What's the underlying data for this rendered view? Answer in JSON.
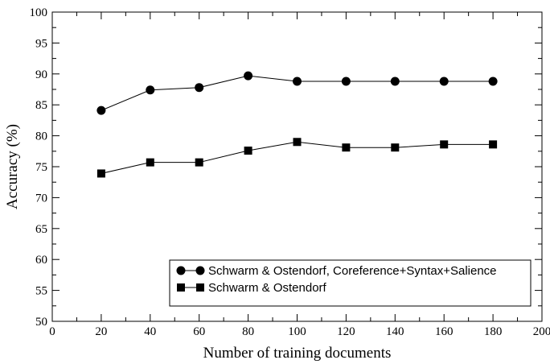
{
  "chart_data": {
    "type": "line",
    "title": "",
    "xlabel": "Number of training documents",
    "ylabel": "Accuracy (%)",
    "xlim": [
      0,
      200
    ],
    "ylim": [
      50,
      100
    ],
    "xticks": [
      0,
      20,
      40,
      60,
      80,
      100,
      120,
      140,
      160,
      180,
      200
    ],
    "yticks": [
      50,
      55,
      60,
      65,
      70,
      75,
      80,
      85,
      90,
      95,
      100
    ],
    "grid": false,
    "legend_position": "bottom-right",
    "x": [
      20,
      40,
      60,
      80,
      100,
      120,
      140,
      160,
      180
    ],
    "series": [
      {
        "name": "Schwarm & Ostendorf, Coreference+Syntax+Salience",
        "marker": "circle",
        "color": "#000000",
        "values": [
          84.1,
          87.4,
          87.8,
          89.7,
          88.8,
          88.8,
          88.8,
          88.8,
          88.8
        ]
      },
      {
        "name": "Schwarm & Ostendorf",
        "marker": "square",
        "color": "#000000",
        "values": [
          73.9,
          75.7,
          75.7,
          77.6,
          79.0,
          78.1,
          78.1,
          78.6,
          78.6
        ]
      }
    ]
  }
}
